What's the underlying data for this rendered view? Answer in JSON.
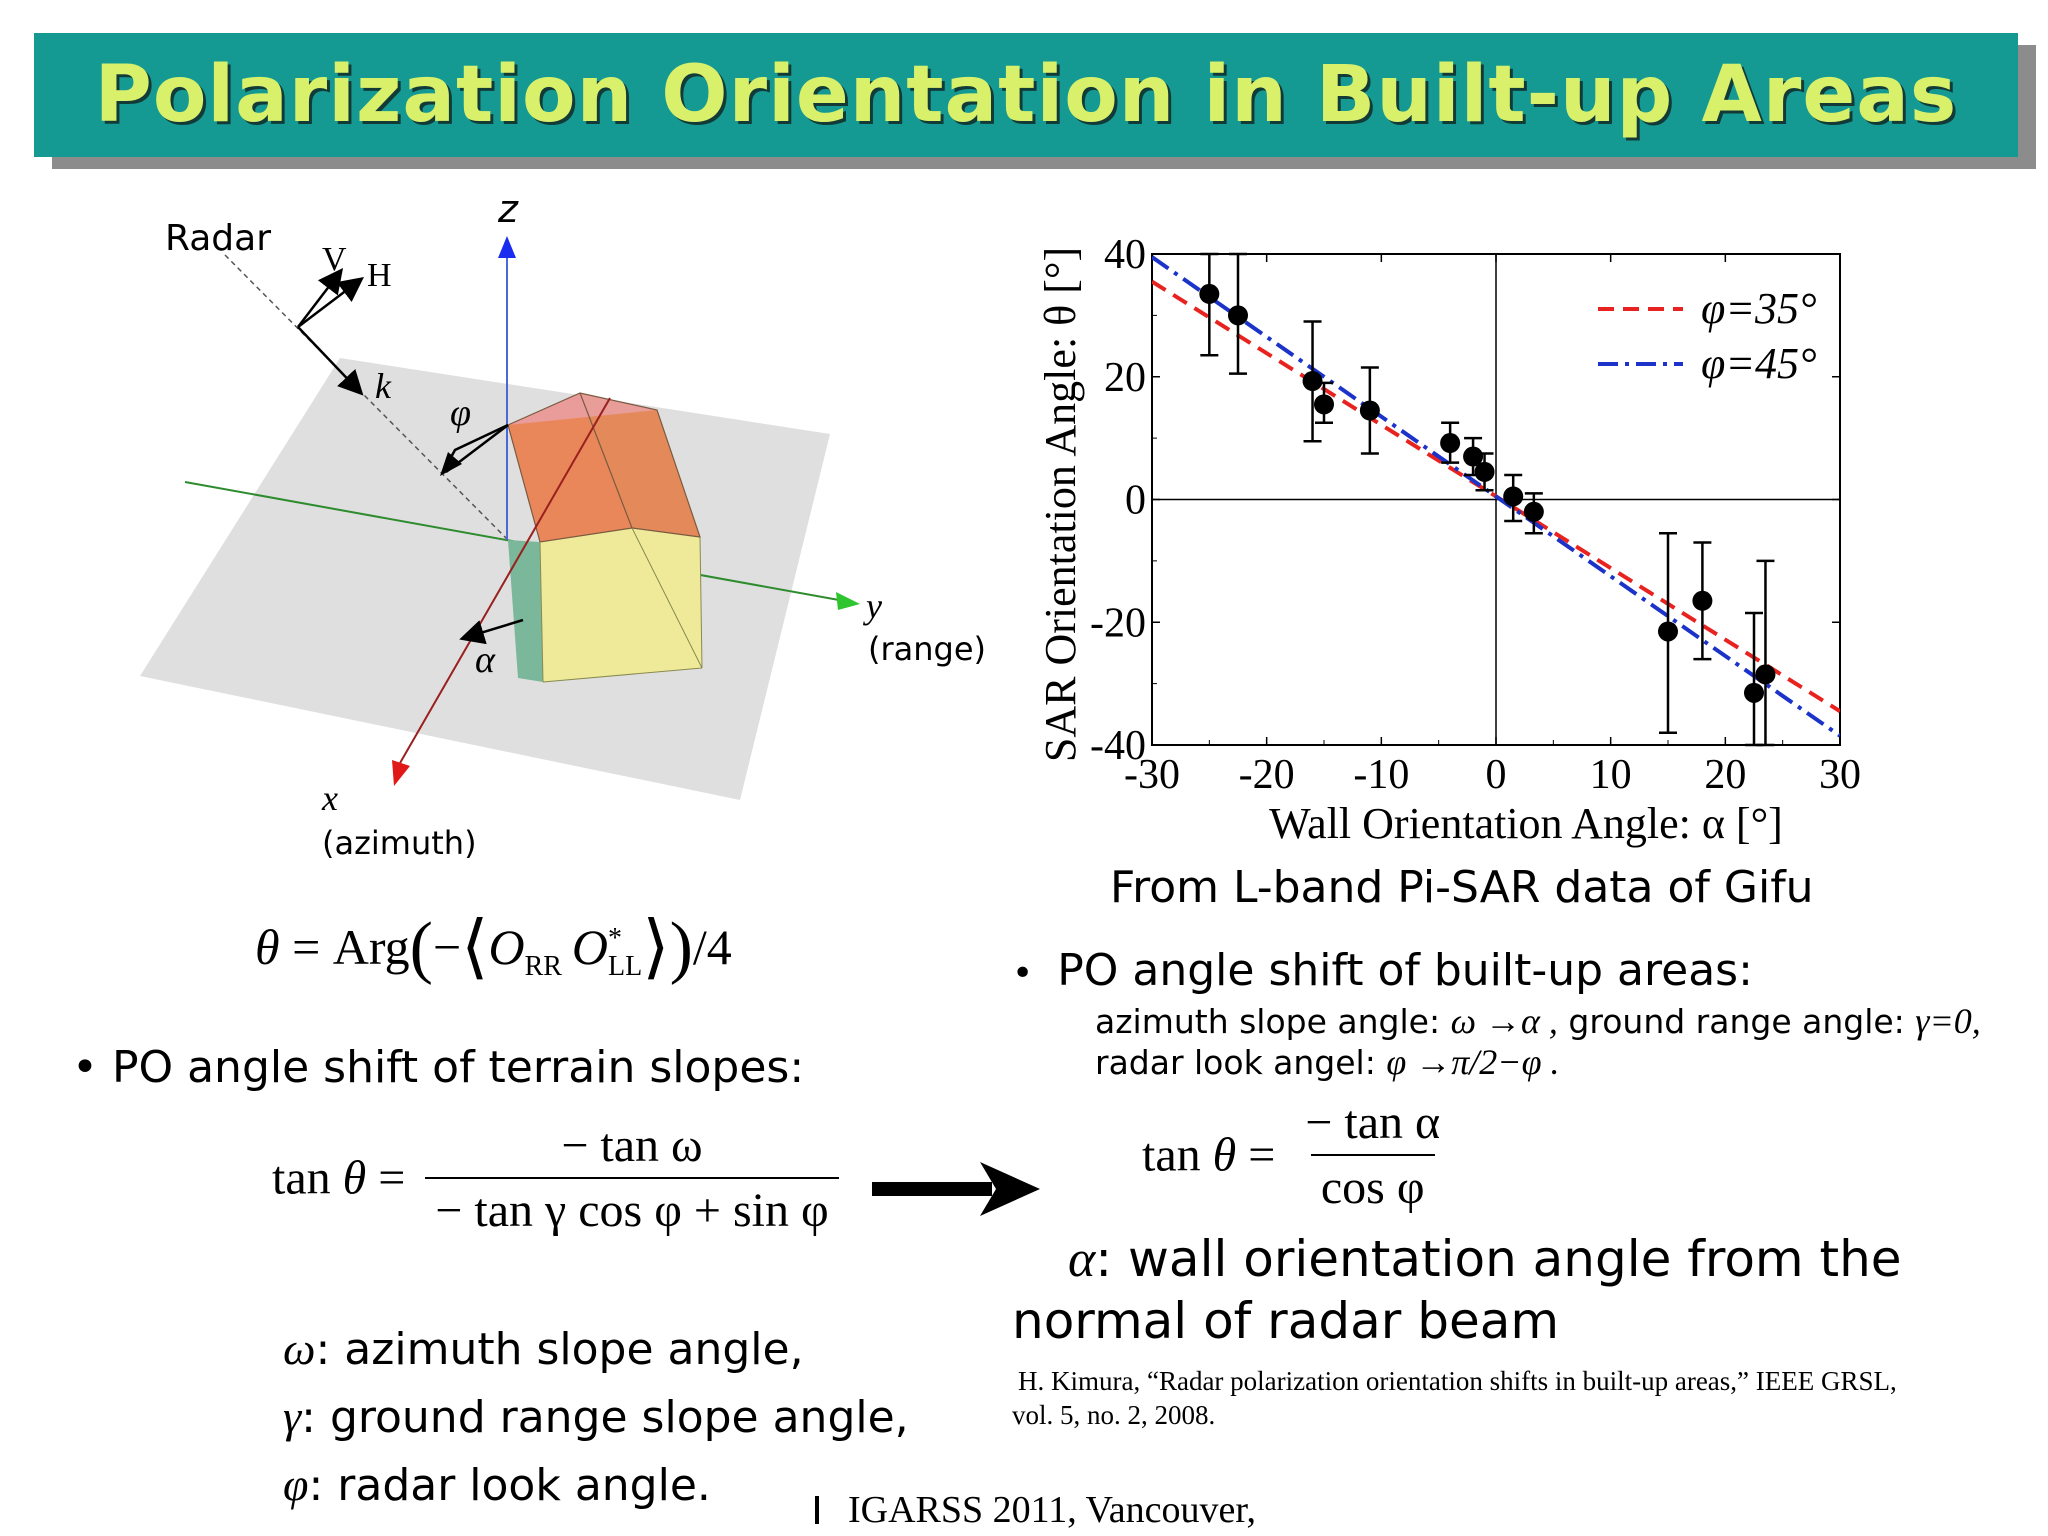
{
  "slide": {
    "title": "Polarization Orientation in Built-up Areas",
    "footer": "IGARSS 2011, Vancouver,"
  },
  "diagram": {
    "radar_label": "Radar",
    "v_label": "V",
    "h_label": "H",
    "k_label": "k",
    "phi_label": "φ",
    "alpha_label": "α",
    "z_label": "z",
    "y_label": "y",
    "y_sub": "(range)",
    "x_label": "x",
    "x_sub": "(azimuth)"
  },
  "equation_theta": {
    "lhs": "θ = Arg",
    "minus": "−",
    "o1": "O",
    "o1_sub": "RR",
    "o2": "O",
    "o2_sup": "*",
    "o2_sub": "LL",
    "tail": "/4"
  },
  "left": {
    "bullet": "• PO angle shift of terrain slopes:",
    "eq_lhs": "tan θ =",
    "eq_num": "− tan ω",
    "eq_den": "− tan γ cos φ + sin φ",
    "defs": [
      {
        "sym": "ω",
        "text": ": azimuth slope angle,"
      },
      {
        "sym": "γ",
        "text": ": ground range slope angle,"
      },
      {
        "sym": "φ",
        "text": ": radar look angle."
      }
    ]
  },
  "right": {
    "chart_caption": "From L-band Pi-SAR data of Gifu",
    "bullet": "PO angle shift of built-up areas:",
    "sub1_a": "azimuth slope angle:",
    "sub1_b": "ω →α ,",
    "sub1_c": "ground range angle:",
    "sub1_d": "γ=0,",
    "sub2_a": "radar look angel:",
    "sub2_b": "φ →π/2−φ .",
    "eq_lhs": "tan θ =",
    "eq_num": "− tan α",
    "eq_den": "cos φ",
    "alpha_sym": "α",
    "alpha_text": ": wall orientation angle from the",
    "alpha_text2": "normal of radar beam",
    "reference_line1": "H. Kimura, “Radar polarization orientation shifts in built-up areas,” IEEE GRSL,",
    "reference_line2": "vol. 5, no. 2, 2008."
  },
  "chart_data": {
    "type": "scatter",
    "xlabel": "Wall Orientation Angle:  α [°]",
    "ylabel": "SAR Orientation Angle: θ [°]",
    "xlim": [
      -30,
      30
    ],
    "ylim": [
      -40,
      40
    ],
    "xticks": [
      -30,
      -20,
      -10,
      0,
      10,
      20,
      30
    ],
    "yticks": [
      -40,
      -20,
      0,
      20,
      40
    ],
    "points": [
      {
        "x": -25,
        "y": 33.5,
        "lo": 23.5,
        "hi": 40
      },
      {
        "x": -22.5,
        "y": 30,
        "lo": 20.5,
        "hi": 40
      },
      {
        "x": -16,
        "y": 19.3,
        "lo": 9.5,
        "hi": 29
      },
      {
        "x": -15,
        "y": 15.5,
        "lo": 12.5,
        "hi": 19
      },
      {
        "x": -11,
        "y": 14.5,
        "lo": 7.5,
        "hi": 21.5
      },
      {
        "x": -4,
        "y": 9.2,
        "lo": 6,
        "hi": 12.5
      },
      {
        "x": -2,
        "y": 7,
        "lo": 4,
        "hi": 10
      },
      {
        "x": -1,
        "y": 4.5,
        "lo": 1.5,
        "hi": 7.5
      },
      {
        "x": 1.5,
        "y": 0.5,
        "lo": -3.5,
        "hi": 4
      },
      {
        "x": 3.3,
        "y": -2,
        "lo": -5.5,
        "hi": 1
      },
      {
        "x": 15,
        "y": -21.5,
        "lo": -38,
        "hi": -5.5
      },
      {
        "x": 18,
        "y": -16.5,
        "lo": -26,
        "hi": -7
      },
      {
        "x": 22.5,
        "y": -31.5,
        "lo": -40,
        "hi": -18.5
      },
      {
        "x": 23.5,
        "y": -28.5,
        "lo": -40,
        "hi": -10
      }
    ],
    "series": [
      {
        "name": "φ=35°",
        "color": "#e8231f",
        "style": "dashed",
        "x": [
          -30,
          30
        ],
        "y": [
          35.5,
          -34.5
        ]
      },
      {
        "name": "φ=45°",
        "color": "#1b33c8",
        "style": "dashdot",
        "x": [
          -30,
          30
        ],
        "y": [
          39.5,
          -38.5
        ]
      }
    ],
    "legend_position": "top-right"
  }
}
